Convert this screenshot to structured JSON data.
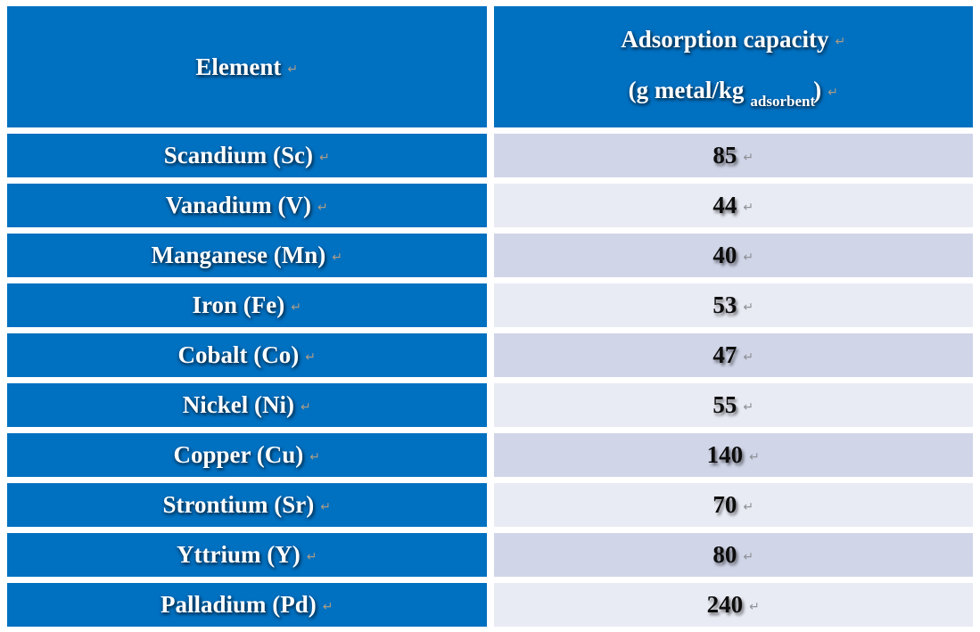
{
  "colors": {
    "header_blue": "#0070C0",
    "row_shade_dark": "#D0D5E8",
    "row_shade_light": "#E9EBF4",
    "label_text": "#FFFFFF",
    "value_text": "#0D0D0D",
    "format_mark_on_blue": "#AB9C87",
    "format_mark_on_shade": "#8F9197",
    "page_background": "#FFFFFF"
  },
  "marks": {
    "return_mark": "↵"
  },
  "table": {
    "header": {
      "element": "Element",
      "capacity_line1": "Adsorption capacity",
      "capacity_line2_prefix": "(g metal/kg",
      "capacity_subscript": "adsorbent",
      "capacity_line2_suffix": ")"
    },
    "rows": [
      {
        "element": "Scandium (Sc)",
        "capacity": "85"
      },
      {
        "element": "Vanadium (V)",
        "capacity": "44"
      },
      {
        "element": "Manganese (Mn)",
        "capacity": "40"
      },
      {
        "element": "Iron (Fe)",
        "capacity": "53"
      },
      {
        "element": "Cobalt (Co)",
        "capacity": "47"
      },
      {
        "element": "Nickel (Ni)",
        "capacity": "55"
      },
      {
        "element": "Copper (Cu)",
        "capacity": "140"
      },
      {
        "element": "Strontium (Sr)",
        "capacity": "70"
      },
      {
        "element": "Yttrium (Y)",
        "capacity": "80"
      },
      {
        "element": "Palladium (Pd)",
        "capacity": "240"
      }
    ]
  },
  "chart_data": {
    "type": "table",
    "columns": [
      "Element",
      "Adsorption capacity (g metal/kg adsorbent)"
    ],
    "categories": [
      "Scandium (Sc)",
      "Vanadium (V)",
      "Manganese (Mn)",
      "Iron (Fe)",
      "Cobalt (Co)",
      "Nickel (Ni)",
      "Copper (Cu)",
      "Strontium (Sr)",
      "Yttrium (Y)",
      "Palladium (Pd)"
    ],
    "values": [
      85,
      44,
      40,
      53,
      47,
      55,
      140,
      70,
      80,
      240
    ]
  }
}
